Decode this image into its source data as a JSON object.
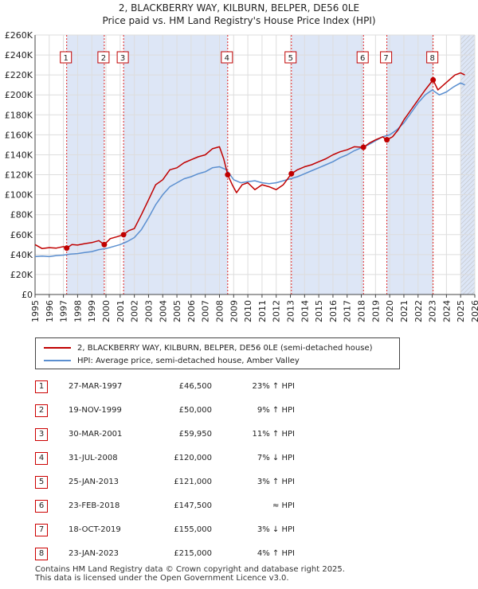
{
  "title_line1": "2, BLACKBERRY WAY, KILBURN, BELPER, DE56 0LE",
  "title_line2": "Price paid vs. HM Land Registry's House Price Index (HPI)",
  "colors": {
    "property": "#c00000",
    "hpi": "#5b8fd0",
    "shade": "#dde6f6",
    "grid": "#dddddd",
    "vline": "#e02020"
  },
  "legend": {
    "property_label": "2, BLACKBERRY WAY, KILBURN, BELPER, DE56 0LE (semi-detached house)",
    "hpi_label": "HPI: Average price, semi-detached house, Amber Valley"
  },
  "sales": [
    {
      "num": "1",
      "date": "27-MAR-1997",
      "price": "£46,500",
      "hpi": "23% ↑ HPI"
    },
    {
      "num": "2",
      "date": "19-NOV-1999",
      "price": "£50,000",
      "hpi": "9% ↑ HPI"
    },
    {
      "num": "3",
      "date": "30-MAR-2001",
      "price": "£59,950",
      "hpi": "11% ↑ HPI"
    },
    {
      "num": "4",
      "date": "31-JUL-2008",
      "price": "£120,000",
      "hpi": "7% ↓ HPI"
    },
    {
      "num": "5",
      "date": "25-JAN-2013",
      "price": "£121,000",
      "hpi": "3% ↑ HPI"
    },
    {
      "num": "6",
      "date": "23-FEB-2018",
      "price": "£147,500",
      "hpi": "≈ HPI"
    },
    {
      "num": "7",
      "date": "18-OCT-2019",
      "price": "£155,000",
      "hpi": "3% ↓ HPI"
    },
    {
      "num": "8",
      "date": "23-JAN-2023",
      "price": "£215,000",
      "hpi": "4% ↑ HPI"
    }
  ],
  "footer_line1": "Contains HM Land Registry data © Crown copyright and database right 2025.",
  "footer_line2": "This data is licensed under the Open Government Licence v3.0.",
  "chart_data": {
    "type": "line",
    "title": "2, BLACKBERRY WAY, KILBURN, BELPER, DE56 0LE",
    "subtitle": "Price paid vs. HM Land Registry's House Price Index (HPI)",
    "xlabel": "",
    "ylabel": "",
    "xlim": [
      1995,
      2026
    ],
    "ylim": [
      0,
      260000
    ],
    "x_ticks": [
      1995,
      1996,
      1997,
      1998,
      1999,
      2000,
      2001,
      2002,
      2003,
      2004,
      2005,
      2006,
      2007,
      2008,
      2009,
      2010,
      2011,
      2012,
      2013,
      2014,
      2015,
      2016,
      2017,
      2018,
      2019,
      2020,
      2021,
      2022,
      2023,
      2024,
      2025,
      2026
    ],
    "y_ticks": [
      0,
      20000,
      40000,
      60000,
      80000,
      100000,
      120000,
      140000,
      160000,
      180000,
      200000,
      220000,
      240000,
      260000
    ],
    "y_tick_labels": [
      "£0",
      "£20K",
      "£40K",
      "£60K",
      "£80K",
      "£100K",
      "£120K",
      "£140K",
      "£160K",
      "£180K",
      "£200K",
      "£220K",
      "£240K",
      "£260K"
    ],
    "grid": true,
    "shaded_ranges": [
      [
        1997.23,
        1999.88
      ],
      [
        2001.24,
        2008.58
      ],
      [
        2013.07,
        2018.15
      ],
      [
        2019.8,
        2023.06
      ],
      [
        2025.0,
        2026.0
      ]
    ],
    "forecast_hatch_from": 2025.0,
    "series": [
      {
        "name": "2, BLACKBERRY WAY, KILBURN, BELPER, DE56 0LE (semi-detached house)",
        "x": [
          1995.0,
          1995.5,
          1996.0,
          1996.5,
          1997.0,
          1997.23,
          1997.6,
          1998.0,
          1998.5,
          1999.0,
          1999.5,
          1999.88,
          2000.3,
          2000.8,
          2001.24,
          2001.6,
          2002.0,
          2002.5,
          2003.0,
          2003.5,
          2004.0,
          2004.5,
          2005.0,
          2005.5,
          2006.0,
          2006.5,
          2007.0,
          2007.5,
          2008.0,
          2008.3,
          2008.58,
          2008.9,
          2009.2,
          2009.6,
          2010.0,
          2010.5,
          2011.0,
          2011.5,
          2012.0,
          2012.5,
          2013.07,
          2013.5,
          2014.0,
          2014.5,
          2015.0,
          2015.5,
          2016.0,
          2016.5,
          2017.0,
          2017.5,
          2018.15,
          2018.6,
          2019.0,
          2019.5,
          2019.8,
          2020.2,
          2020.6,
          2021.0,
          2021.5,
          2022.0,
          2022.5,
          2023.06,
          2023.4,
          2023.8,
          2024.2,
          2024.6,
          2025.0,
          2025.3
        ],
        "values": [
          50000,
          46000,
          47000,
          46500,
          48000,
          46500,
          50000,
          49500,
          51000,
          52000,
          54000,
          50000,
          56000,
          58000,
          59950,
          64000,
          66000,
          80000,
          95000,
          110000,
          115000,
          125000,
          127000,
          132000,
          135000,
          138000,
          140000,
          146000,
          148000,
          136000,
          120000,
          110000,
          102000,
          110000,
          112000,
          105000,
          110000,
          108000,
          105000,
          110000,
          121000,
          125000,
          128000,
          130000,
          133000,
          136000,
          140000,
          143000,
          145000,
          148000,
          147500,
          152000,
          155000,
          158000,
          155000,
          158000,
          165000,
          175000,
          185000,
          195000,
          205000,
          215000,
          205000,
          210000,
          215000,
          220000,
          222000,
          220000
        ]
      },
      {
        "name": "HPI: Average price, semi-detached house, Amber Valley",
        "x": [
          1995.0,
          1995.5,
          1996.0,
          1996.5,
          1997.0,
          1997.5,
          1998.0,
          1998.5,
          1999.0,
          1999.5,
          2000.0,
          2000.5,
          2001.0,
          2001.5,
          2002.0,
          2002.5,
          2003.0,
          2003.5,
          2004.0,
          2004.5,
          2005.0,
          2005.5,
          2006.0,
          2006.5,
          2007.0,
          2007.5,
          2008.0,
          2008.5,
          2009.0,
          2009.5,
          2010.0,
          2010.5,
          2011.0,
          2011.5,
          2012.0,
          2012.5,
          2013.0,
          2013.5,
          2014.0,
          2014.5,
          2015.0,
          2015.5,
          2016.0,
          2016.5,
          2017.0,
          2017.5,
          2018.0,
          2018.5,
          2019.0,
          2019.5,
          2020.0,
          2020.5,
          2021.0,
          2021.5,
          2022.0,
          2022.5,
          2023.0,
          2023.5,
          2024.0,
          2024.5,
          2025.0,
          2025.3
        ],
        "values": [
          38000,
          38500,
          38000,
          39000,
          39500,
          40500,
          41000,
          42000,
          43000,
          45000,
          46000,
          48000,
          50000,
          53000,
          57000,
          65000,
          77000,
          90000,
          100000,
          108000,
          112000,
          116000,
          118000,
          121000,
          123000,
          127000,
          128000,
          125000,
          115000,
          112000,
          113000,
          114000,
          112000,
          111000,
          112000,
          114000,
          116000,
          118000,
          121000,
          124000,
          127000,
          130000,
          133000,
          137000,
          140000,
          144000,
          147000,
          150000,
          154000,
          158000,
          160000,
          165000,
          172000,
          182000,
          192000,
          200000,
          205000,
          200000,
          203000,
          208000,
          212000,
          210000
        ]
      }
    ],
    "sale_markers": [
      {
        "label": "1",
        "x": 1997.23,
        "y": 46500
      },
      {
        "label": "2",
        "x": 1999.88,
        "y": 50000
      },
      {
        "label": "3",
        "x": 2001.24,
        "y": 59950
      },
      {
        "label": "4",
        "x": 2008.58,
        "y": 120000
      },
      {
        "label": "5",
        "x": 2013.07,
        "y": 121000
      },
      {
        "label": "6",
        "x": 2018.15,
        "y": 147500
      },
      {
        "label": "7",
        "x": 2019.8,
        "y": 155000
      },
      {
        "label": "8",
        "x": 2023.06,
        "y": 215000
      }
    ]
  }
}
